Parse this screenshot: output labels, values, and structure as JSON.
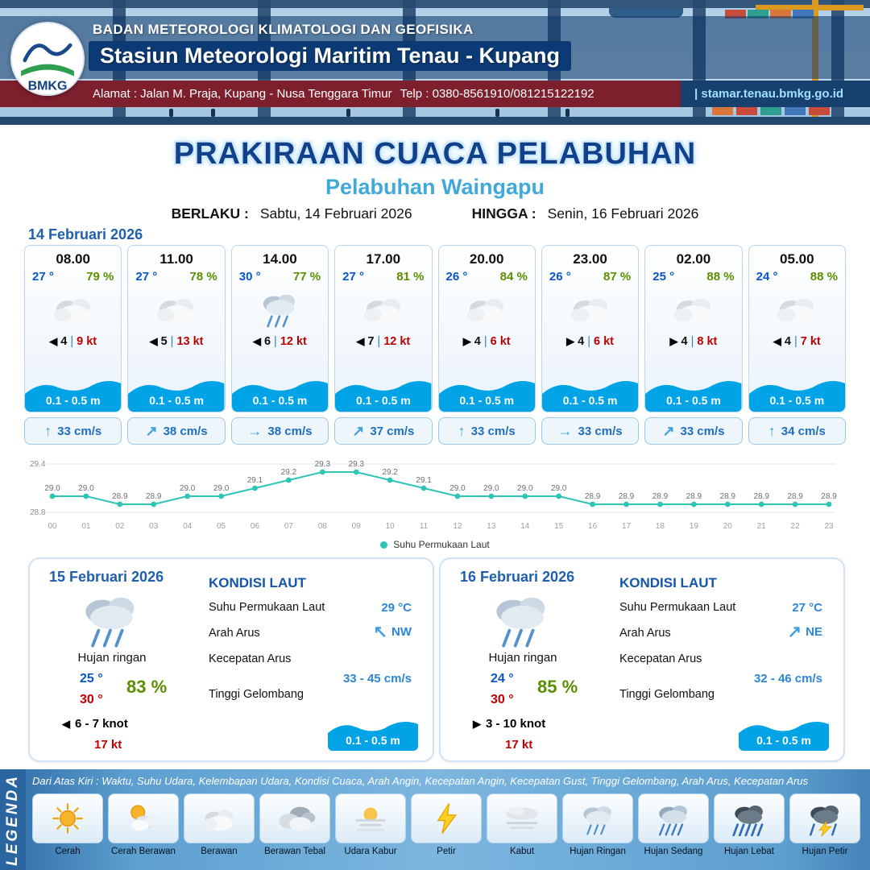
{
  "colors": {
    "temp_blue": "#0a55c8",
    "humidity_green": "#5a8f00",
    "gust_red": "#c00000",
    "wave_blue": "#00a3e6",
    "accent_blue": "#1f5fae",
    "port_title_blue": "#3fa9dc",
    "sst_teal": "#2ec4b6"
  },
  "header": {
    "logo_text": "BMKG",
    "agency": "BADAN METEOROLOGI KLIMATOLOGI DAN GEOFISIKA",
    "station": "Stasiun Meteorologi Maritim Tenau - Kupang",
    "address": "Alamat : Jalan M. Praja, Kupang - Nusa Tenggara Timur",
    "phone": "Telp : 0380-8561910/081215122192",
    "website": "| stamar.tenau.bmkg.go.id"
  },
  "title": {
    "main": "PRAKIRAAN CUACA PELABUHAN",
    "port": "Pelabuhan Waingapu",
    "valid_label": "BERLAKU :",
    "valid_value": "Sabtu, 14 Februari 2026",
    "until_label": "HINGGA :",
    "until_value": "Senin, 16 Februari 2026"
  },
  "forecast": {
    "date": "14 Februari 2026",
    "sep": "|",
    "cards": [
      {
        "time": "08.00",
        "temp": "27 °",
        "humidity": "79 %",
        "icon": "cloud",
        "wind_arrow": "◀",
        "wind_speed": "4",
        "gust": "9 kt",
        "wave": "0.1 - 0.5 m",
        "current_arrow": "↑",
        "current_speed": "33 cm/s"
      },
      {
        "time": "11.00",
        "temp": "27 °",
        "humidity": "78 %",
        "icon": "cloud",
        "wind_arrow": "◀",
        "wind_speed": "5",
        "gust": "13 kt",
        "wave": "0.1 - 0.5 m",
        "current_arrow": "↗",
        "current_speed": "38 cm/s"
      },
      {
        "time": "14.00",
        "temp": "30 °",
        "humidity": "77 %",
        "icon": "rain-light",
        "wind_arrow": "◀",
        "wind_speed": "6",
        "gust": "12 kt",
        "wave": "0.1 - 0.5 m",
        "current_arrow": "→",
        "current_speed": "38 cm/s"
      },
      {
        "time": "17.00",
        "temp": "27 °",
        "humidity": "81 %",
        "icon": "cloud",
        "wind_arrow": "◀",
        "wind_speed": "7",
        "gust": "12 kt",
        "wave": "0.1 - 0.5 m",
        "current_arrow": "↗",
        "current_speed": "37 cm/s"
      },
      {
        "time": "20.00",
        "temp": "26 °",
        "humidity": "84 %",
        "icon": "cloud",
        "wind_arrow": "▶",
        "wind_speed": "4",
        "gust": "6 kt",
        "wave": "0.1 - 0.5 m",
        "current_arrow": "↑",
        "current_speed": "33 cm/s"
      },
      {
        "time": "23.00",
        "temp": "26 °",
        "humidity": "87 %",
        "icon": "cloud",
        "wind_arrow": "▶",
        "wind_speed": "4",
        "gust": "6 kt",
        "wave": "0.1 - 0.5 m",
        "current_arrow": "→",
        "current_speed": "33 cm/s"
      },
      {
        "time": "02.00",
        "temp": "25 °",
        "humidity": "88 %",
        "icon": "cloud",
        "wind_arrow": "▶",
        "wind_speed": "4",
        "gust": "8 kt",
        "wave": "0.1 - 0.5 m",
        "current_arrow": "↗",
        "current_speed": "33 cm/s"
      },
      {
        "time": "05.00",
        "temp": "24 °",
        "humidity": "88 %",
        "icon": "cloud",
        "wind_arrow": "◀",
        "wind_speed": "4",
        "gust": "7 kt",
        "wave": "0.1 - 0.5 m",
        "current_arrow": "↑",
        "current_speed": "34 cm/s"
      }
    ]
  },
  "chart_data": {
    "type": "line",
    "x": [
      "00",
      "01",
      "02",
      "03",
      "04",
      "05",
      "06",
      "07",
      "08",
      "09",
      "10",
      "11",
      "12",
      "13",
      "14",
      "15",
      "16",
      "17",
      "18",
      "19",
      "20",
      "21",
      "22",
      "23"
    ],
    "values": [
      29.0,
      29.0,
      28.9,
      28.9,
      29.0,
      29.0,
      29.1,
      29.2,
      29.3,
      29.3,
      29.2,
      29.1,
      29.0,
      29.0,
      29.0,
      29.0,
      28.9,
      28.9,
      28.9,
      28.9,
      28.9,
      28.9,
      28.9,
      28.9
    ],
    "title": "",
    "xlabel": "",
    "ylabel": "",
    "ylim": [
      28.8,
      29.4
    ],
    "yticks": [
      "29.4",
      "28.8"
    ],
    "legend_label": "Suhu Permukaan Laut",
    "line_color": "#2ec4b6",
    "grid": false,
    "legend_position": "bottom"
  },
  "daily": [
    {
      "date": "15 Februari 2026",
      "icon": "rain-light",
      "condition": "Hujan ringan",
      "temp_min": "25 °",
      "temp_max": "30 °",
      "humidity": "83 %",
      "wind_arrow": "◀",
      "wind_speed": "6 - 7 knot",
      "gust": "17 kt",
      "sea_title": "KONDISI LAUT",
      "sst_label": "Suhu Permukaan Laut",
      "sst_value": "29 °C",
      "current_dir_label": "Arah Arus",
      "current_dir_arrow": "↖",
      "current_dir": "NW",
      "current_speed_label": "Kecepatan Arus",
      "current_speed": "33 - 45 cm/s",
      "wave_label": "Tinggi Gelombang",
      "wave_value": "0.1 - 0.5 m"
    },
    {
      "date": "16 Februari 2026",
      "icon": "rain-light",
      "condition": "Hujan ringan",
      "temp_min": "24 °",
      "temp_max": "30 °",
      "humidity": "85 %",
      "wind_arrow": "▶",
      "wind_speed": "3  - 10 knot",
      "gust": "17 kt",
      "sea_title": "KONDISI LAUT",
      "sst_label": "Suhu Permukaan Laut",
      "sst_value": "27 °C",
      "current_dir_label": "Arah Arus",
      "current_dir_arrow": "↗",
      "current_dir": "NE",
      "current_speed_label": "Kecepatan Arus",
      "current_speed": "32 - 46 cm/s",
      "wave_label": "Tinggi Gelombang",
      "wave_value": "0.1 - 0.5 m"
    }
  ],
  "legend": {
    "label": "LEGENDA",
    "note": "Dari Atas Kiri : Waktu, Suhu Udara, Kelembapan Udara, Kondisi Cuaca, Arah Angin, Kecepatan Angin, Kecepatan Gust, Tinggi Gelombang, Arah Arus, Kecepatan Arus",
    "items": [
      {
        "label": "Cerah",
        "icon": "sun"
      },
      {
        "label": "Cerah Berawan",
        "icon": "sun-cloud"
      },
      {
        "label": "Berawan",
        "icon": "cloud"
      },
      {
        "label": "Berawan Tebal",
        "icon": "clouds"
      },
      {
        "label": "Udara Kabur",
        "icon": "haze"
      },
      {
        "label": "Petir",
        "icon": "lightning"
      },
      {
        "label": "Kabut",
        "icon": "fog"
      },
      {
        "label": "Hujan Ringan",
        "icon": "rain-light"
      },
      {
        "label": "Hujan Sedang",
        "icon": "rain-medium"
      },
      {
        "label": "Hujan Lebat",
        "icon": "rain-heavy"
      },
      {
        "label": "Hujan Petir",
        "icon": "rain-thunder"
      }
    ]
  }
}
